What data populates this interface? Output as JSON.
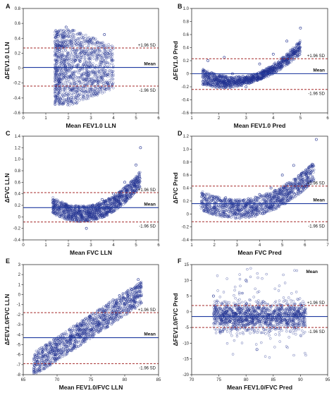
{
  "colors": {
    "points": "#1f2f8f",
    "mean_line": "#1f3aa0",
    "sd_line": "#a52a2a",
    "axis": "#333333"
  },
  "chart_data": [
    {
      "panel": "A",
      "type": "scatter",
      "xlabel": "Mean FEV1.0 LLN",
      "ylabel": "ΔFEV1.0 LLN",
      "xlim": [
        0,
        6
      ],
      "ylim": [
        -0.6,
        0.8
      ],
      "xticks": [
        "0",
        "1",
        "2",
        "3",
        "4",
        "5",
        "6"
      ],
      "yticks": [
        "-0.6",
        "-0.4",
        "-0.2",
        "0",
        "0.2",
        "0.4",
        "0.6",
        "0.8"
      ],
      "mean": 0.01,
      "upper_sd": 0.27,
      "lower_sd": -0.24,
      "mean_label": "Mean",
      "upper_label": "+1.96 SD",
      "lower_label": "-1.96 SD",
      "point_cloud": [
        [
          1.5,
          0.45
        ],
        [
          1.6,
          -0.2
        ],
        [
          1.8,
          0.3
        ],
        [
          2.0,
          -0.4
        ],
        [
          2.3,
          0.1
        ],
        [
          2.6,
          -0.3
        ],
        [
          3.0,
          0.2
        ],
        [
          3.3,
          0.35
        ],
        [
          3.6,
          0.45
        ],
        [
          1.9,
          0.55
        ],
        [
          2.8,
          -0.15
        ],
        [
          2.2,
          0.25
        ]
      ]
    },
    {
      "panel": "B",
      "type": "scatter",
      "xlabel": "Mean FEV1.0 Pred",
      "ylabel": "ΔFEV1.0 Pred",
      "xlim": [
        1,
        6
      ],
      "ylim": [
        -0.6,
        1.0
      ],
      "xticks": [
        "1",
        "2",
        "3",
        "4",
        "5",
        "6"
      ],
      "yticks": [
        "-0.6",
        "-0.4",
        "-0.2",
        "0",
        "0.2",
        "0.4",
        "0.6",
        "0.8",
        "1.0"
      ],
      "mean": 0.0,
      "upper_sd": 0.23,
      "lower_sd": -0.24,
      "mean_label": "Mean",
      "upper_label": "+1.96 SD",
      "lower_label": "-1.96 SD",
      "point_cloud": [
        [
          1.6,
          0.2
        ],
        [
          2.0,
          -0.1
        ],
        [
          2.5,
          0.0
        ],
        [
          3.0,
          -0.2
        ],
        [
          3.5,
          0.15
        ],
        [
          4.0,
          0.3
        ],
        [
          4.5,
          0.5
        ],
        [
          5.0,
          0.7
        ],
        [
          2.2,
          0.25
        ],
        [
          3.8,
          0.0
        ]
      ]
    },
    {
      "panel": "C",
      "type": "scatter",
      "xlabel": "Mean FVC LLN",
      "ylabel": "ΔFVC LLN",
      "xlim": [
        0,
        6
      ],
      "ylim": [
        -0.4,
        1.4
      ],
      "xticks": [
        "0",
        "1",
        "2",
        "3",
        "4",
        "5",
        "6"
      ],
      "yticks": [
        "-0.4",
        "-0.2",
        "0",
        "0.2",
        "0.4",
        "0.6",
        "0.8",
        "1.0",
        "1.2",
        "1.4"
      ],
      "mean": 0.16,
      "upper_sd": 0.42,
      "lower_sd": -0.09,
      "mean_label": "Mean",
      "upper_label": "+1.96 SD",
      "lower_label": "-1.96 SD",
      "point_cloud": [
        [
          1.4,
          0.2
        ],
        [
          2.0,
          0.0
        ],
        [
          2.5,
          0.1
        ],
        [
          3.0,
          0.05
        ],
        [
          3.5,
          0.3
        ],
        [
          4.0,
          0.4
        ],
        [
          4.5,
          0.6
        ],
        [
          5.0,
          0.9
        ],
        [
          5.2,
          1.2
        ],
        [
          2.8,
          -0.2
        ]
      ]
    },
    {
      "panel": "D",
      "type": "scatter",
      "xlabel": "Mean FVC Pred",
      "ylabel": "ΔFVC Pred",
      "xlim": [
        1,
        7
      ],
      "ylim": [
        -0.4,
        1.2
      ],
      "xticks": [
        "1",
        "2",
        "3",
        "4",
        "5",
        "6",
        "7"
      ],
      "yticks": [
        "-0.4",
        "-0.2",
        "0",
        "0.2",
        "0.4",
        "0.6",
        "0.8",
        "1.0",
        "1.2"
      ],
      "mean": 0.16,
      "upper_sd": 0.43,
      "lower_sd": -0.12,
      "mean_label": "Mean",
      "upper_label": "+1.96 SD",
      "lower_label": "-1.96 SD",
      "point_cloud": [
        [
          1.5,
          0.3
        ],
        [
          2.0,
          0.1
        ],
        [
          2.5,
          0.25
        ],
        [
          3.0,
          0.0
        ],
        [
          3.5,
          0.2
        ],
        [
          4.0,
          0.3
        ],
        [
          4.5,
          0.4
        ],
        [
          5.0,
          0.6
        ],
        [
          5.5,
          0.75
        ],
        [
          6.5,
          1.15
        ]
      ]
    },
    {
      "panel": "E",
      "type": "scatter",
      "xlabel": "Mean FEV1.0/FVC LLN",
      "ylabel": "ΔFEV1.0/FVC LLN",
      "xlim": [
        65,
        85
      ],
      "ylim": [
        -8,
        3
      ],
      "xticks": [
        "65",
        "70",
        "75",
        "80",
        "85"
      ],
      "yticks": [
        "-8",
        "-7",
        "-6",
        "-5",
        "-4",
        "-3",
        "-2",
        "-1",
        "0",
        "1",
        "2",
        "3"
      ],
      "mean": -4.3,
      "upper_sd": -1.8,
      "lower_sd": -6.9,
      "mean_label": "Mean",
      "upper_label": "+1.96 SD",
      "lower_label": "-1.96 SD",
      "point_cloud": [
        [
          67,
          -6.5
        ],
        [
          69,
          -5.5
        ],
        [
          71,
          -5.0
        ],
        [
          73,
          -4.0
        ],
        [
          75,
          -3.5
        ],
        [
          77,
          -2.5
        ],
        [
          79,
          -1.5
        ],
        [
          81,
          0.5
        ],
        [
          82,
          1.5
        ],
        [
          74,
          -4.5
        ]
      ]
    },
    {
      "panel": "F",
      "type": "scatter",
      "xlabel": "Mean FEV1.0/FVC Pred",
      "ylabel": "ΔFEV1.0/FVC Pred",
      "xlim": [
        70,
        95
      ],
      "ylim": [
        -20,
        15
      ],
      "xticks": [
        "70",
        "75",
        "80",
        "85",
        "90",
        "95"
      ],
      "yticks": [
        "-20",
        "-15",
        "-10",
        "-5",
        "0",
        "5",
        "10",
        "15"
      ],
      "mean": -1.5,
      "upper_sd": 2.0,
      "lower_sd": -5.0,
      "mean_label": "Mean",
      "upper_label": "+1.96 SD",
      "lower_label": "-1.96 SD",
      "point_cloud": [
        [
          74,
          5
        ],
        [
          76,
          -3
        ],
        [
          78,
          2
        ],
        [
          80,
          0
        ],
        [
          82,
          -2
        ],
        [
          84,
          -1
        ],
        [
          86,
          1
        ],
        [
          88,
          -3
        ],
        [
          90,
          -1
        ],
        [
          80,
          10
        ],
        [
          82,
          -12
        ]
      ]
    }
  ]
}
